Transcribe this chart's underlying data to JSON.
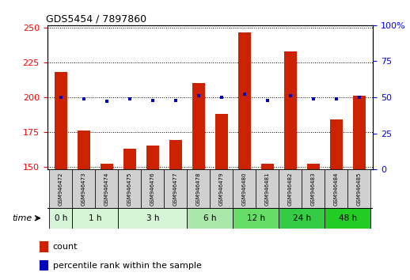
{
  "title": "GDS5454 / 7897860",
  "samples": [
    "GSM946472",
    "GSM946473",
    "GSM946474",
    "GSM946475",
    "GSM946476",
    "GSM946477",
    "GSM946478",
    "GSM946479",
    "GSM946480",
    "GSM946481",
    "GSM946482",
    "GSM946483",
    "GSM946484",
    "GSM946485"
  ],
  "counts": [
    218,
    176,
    152,
    163,
    165,
    169,
    210,
    188,
    247,
    152,
    233,
    152,
    184,
    201
  ],
  "percentiles": [
    50,
    49,
    47,
    49,
    48,
    48,
    51,
    50,
    52,
    48,
    51,
    49,
    49,
    50
  ],
  "time_groups": [
    {
      "label": "0 h",
      "indices": [
        0
      ],
      "color": "#d6f5d6"
    },
    {
      "label": "1 h",
      "indices": [
        1,
        2
      ],
      "color": "#d6f5d6"
    },
    {
      "label": "3 h",
      "indices": [
        3,
        4,
        5
      ],
      "color": "#d6f5d6"
    },
    {
      "label": "6 h",
      "indices": [
        6,
        7
      ],
      "color": "#aae8aa"
    },
    {
      "label": "12 h",
      "indices": [
        8,
        9
      ],
      "color": "#66dd66"
    },
    {
      "label": "24 h",
      "indices": [
        10,
        11
      ],
      "color": "#33cc44"
    },
    {
      "label": "48 h",
      "indices": [
        12,
        13
      ],
      "color": "#22cc22"
    }
  ],
  "ylim_left": [
    148,
    252
  ],
  "ylim_right": [
    0,
    100
  ],
  "yticks_left": [
    150,
    175,
    200,
    225,
    250
  ],
  "yticks_right": [
    0,
    25,
    50,
    75,
    100
  ],
  "bar_color": "#cc2200",
  "dot_color": "#0000bb",
  "sample_box_color": "#d0d0d0",
  "time_label": "time"
}
